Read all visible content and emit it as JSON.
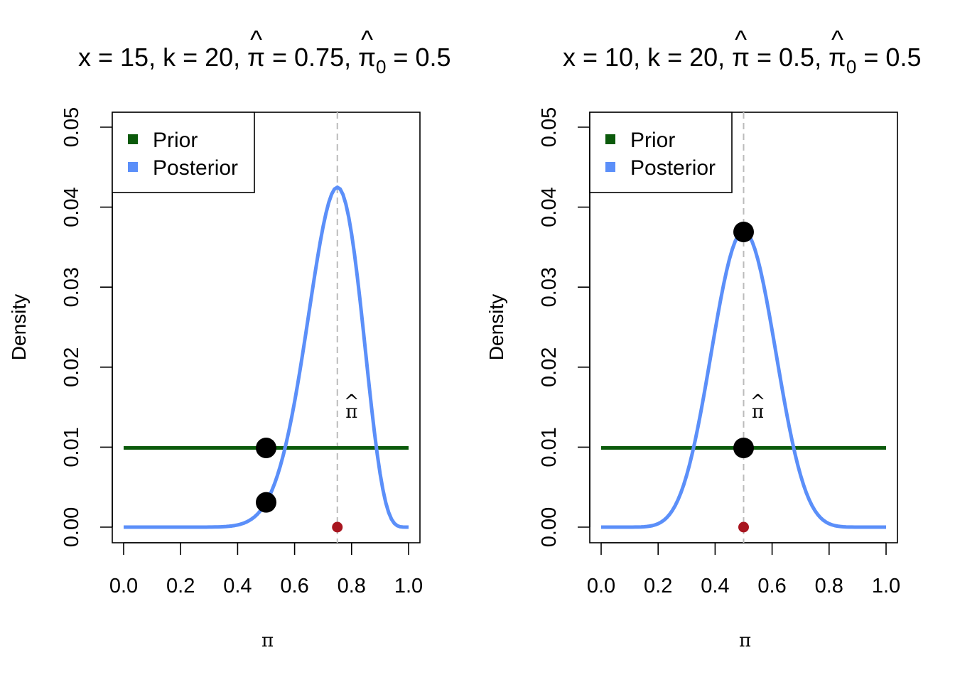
{
  "chart_data": [
    {
      "type": "line",
      "title": {
        "pre": "x = 15, k = 20, ",
        "pihat_sym": "π",
        "mid": " = 0.75, ",
        "pihat0_sym": "π",
        "sub": "0",
        "post": " = 0.5"
      },
      "x": 15,
      "k": 20,
      "pi_hat": 0.75,
      "pi0_hat": 0.5,
      "xlabel": "π",
      "ylabel": "Density",
      "xlim": [
        0,
        1
      ],
      "ylim": [
        0,
        0.05
      ],
      "xticks": [
        "0.0",
        "0.2",
        "0.4",
        "0.6",
        "0.8",
        "1.0"
      ],
      "yticks": [
        "0.00",
        "0.01",
        "0.02",
        "0.03",
        "0.04",
        "0.05"
      ],
      "series": [
        {
          "name": "Prior",
          "color": "#0b5a0b",
          "kind": "uniform",
          "value": 0.0099
        },
        {
          "name": "Posterior",
          "color": "#5b8ff9",
          "kind": "beta",
          "a": 16,
          "b": 6,
          "grid_points": 101
        }
      ],
      "vline": {
        "x": 0.75,
        "color": "#bbbbbb",
        "label": "π"
      },
      "points": [
        {
          "x": 0.5,
          "y": 0.0099,
          "color": "#000000"
        },
        {
          "x": 0.5,
          "y": 0.0031,
          "color": "#000000"
        }
      ],
      "estimate_point": {
        "x": 0.75,
        "y": 0,
        "color": "#a8151f"
      },
      "legend": {
        "position": "top-left",
        "entries": [
          "Prior",
          "Posterior"
        ]
      }
    },
    {
      "type": "line",
      "title": {
        "pre": "x = 10, k = 20, ",
        "pihat_sym": "π",
        "mid": " = 0.5, ",
        "pihat0_sym": "π",
        "sub": "0",
        "post": " = 0.5"
      },
      "x": 10,
      "k": 20,
      "pi_hat": 0.5,
      "pi0_hat": 0.5,
      "xlabel": "π",
      "ylabel": "Density",
      "xlim": [
        0,
        1
      ],
      "ylim": [
        0,
        0.05
      ],
      "xticks": [
        "0.0",
        "0.2",
        "0.4",
        "0.6",
        "0.8",
        "1.0"
      ],
      "yticks": [
        "0.00",
        "0.01",
        "0.02",
        "0.03",
        "0.04",
        "0.05"
      ],
      "series": [
        {
          "name": "Prior",
          "color": "#0b5a0b",
          "kind": "uniform",
          "value": 0.0099
        },
        {
          "name": "Posterior",
          "color": "#5b8ff9",
          "kind": "beta",
          "a": 11,
          "b": 11,
          "grid_points": 101
        }
      ],
      "vline": {
        "x": 0.5,
        "color": "#bbbbbb",
        "label": "π"
      },
      "points": [
        {
          "x": 0.5,
          "y": 0.0369,
          "color": "#000000"
        },
        {
          "x": 0.5,
          "y": 0.0099,
          "color": "#000000"
        }
      ],
      "estimate_point": {
        "x": 0.5,
        "y": 0,
        "color": "#a8151f"
      },
      "legend": {
        "position": "top-left",
        "entries": [
          "Prior",
          "Posterior"
        ]
      }
    }
  ]
}
